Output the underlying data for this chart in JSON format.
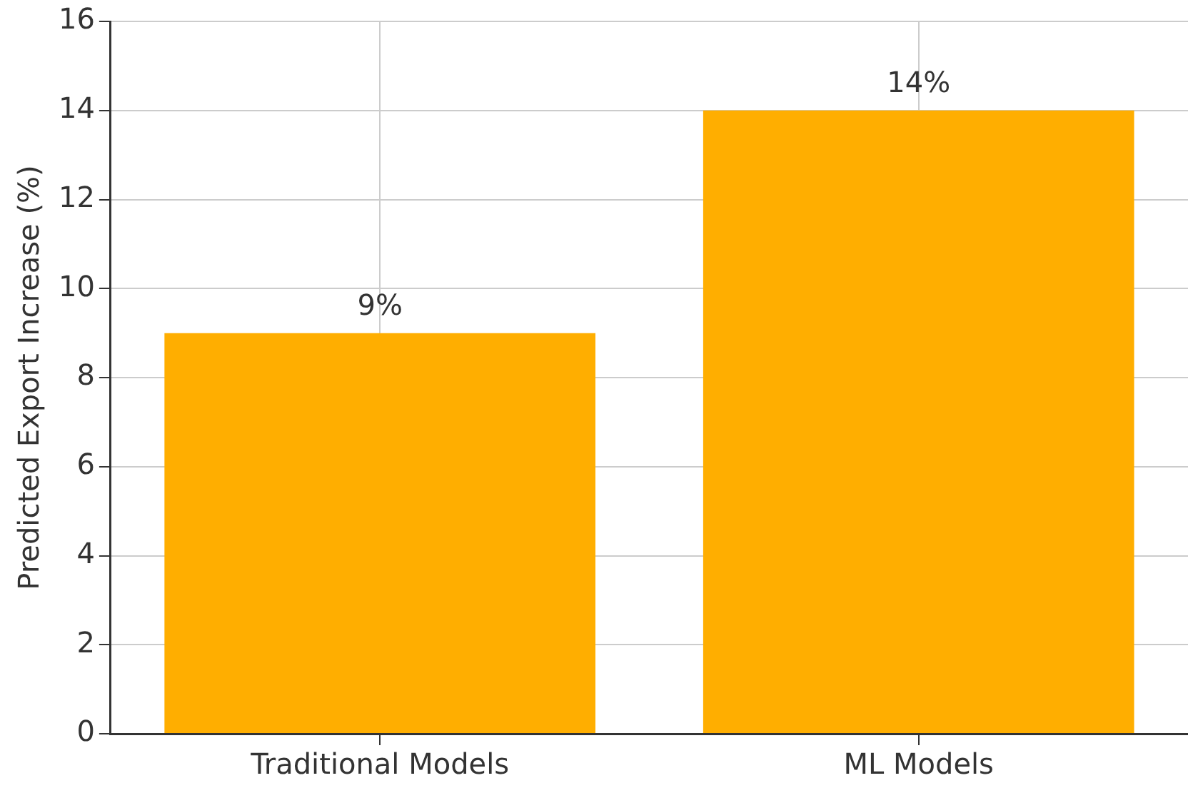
{
  "chart_data": {
    "type": "bar",
    "ylabel": "Predicted Export Increase (%)",
    "categories": [
      "Traditional Models",
      "ML Models"
    ],
    "values": [
      9,
      14
    ],
    "color": "#ffae00",
    "value_labels": [
      "9%",
      "14%"
    ],
    "ylim": [
      0,
      16
    ],
    "yticks": [
      0,
      2,
      4,
      6,
      8,
      10,
      12,
      14,
      16
    ],
    "grid": true
  }
}
